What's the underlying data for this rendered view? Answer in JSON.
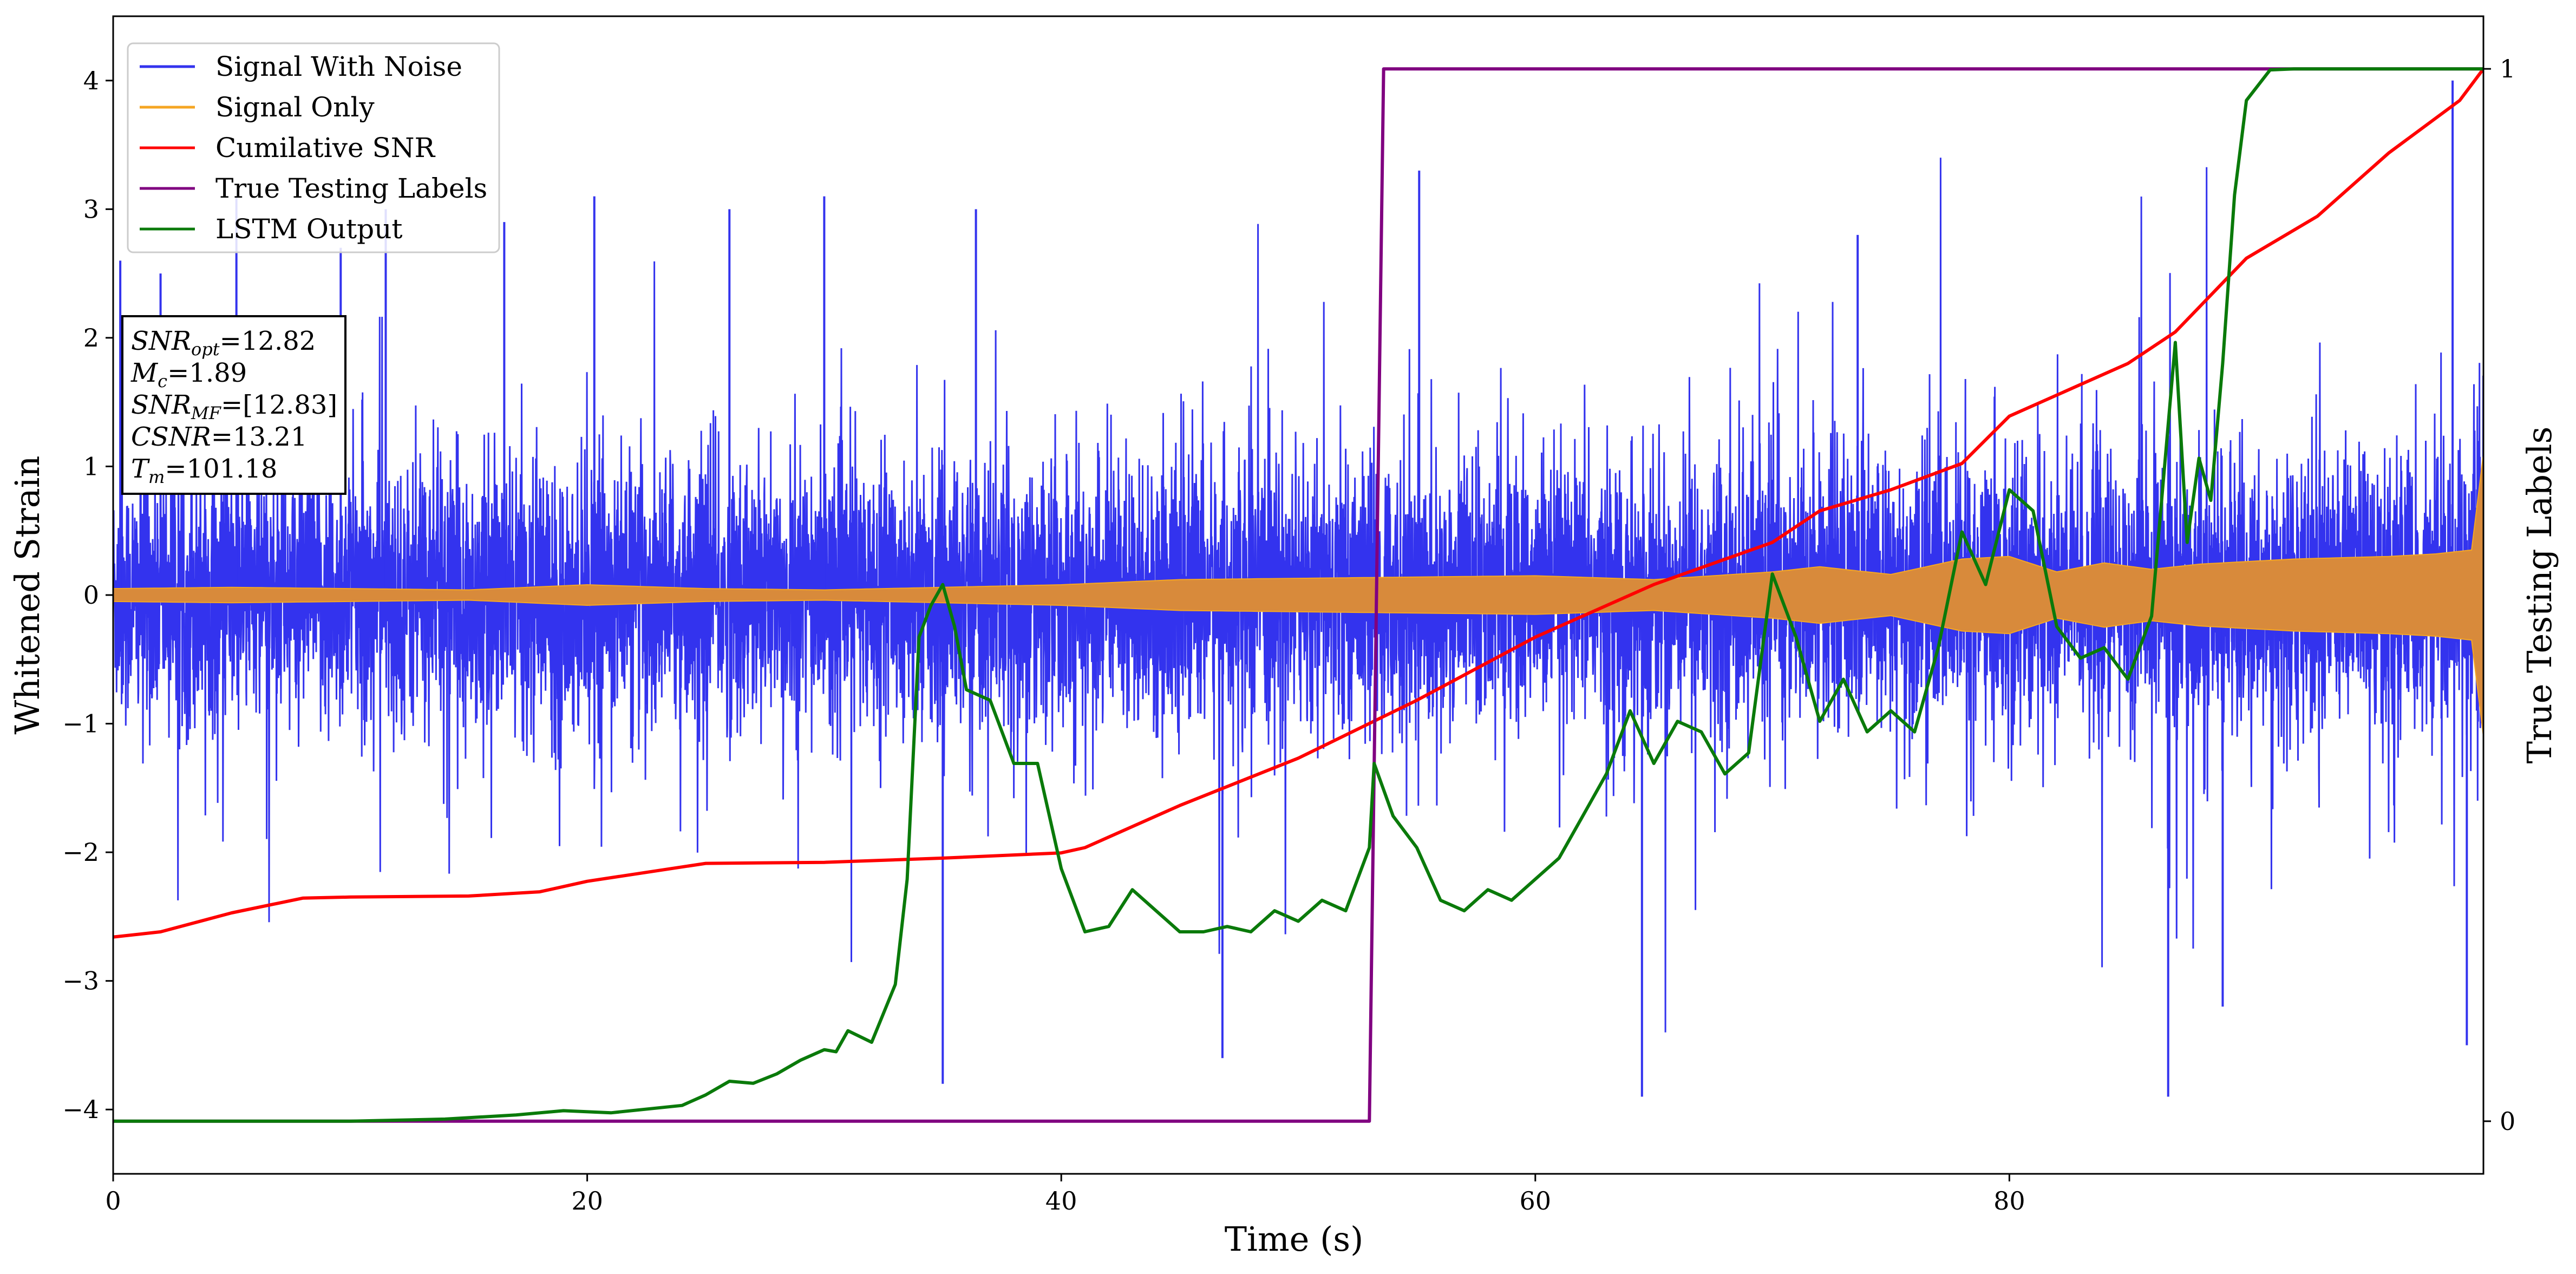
{
  "chart_data": {
    "type": "line",
    "xlabel": "Time (s)",
    "ylabel": "Whitened Strain",
    "y2label": "True Testing Labels",
    "xlim": [
      0,
      100
    ],
    "ylim": [
      -4.5,
      4.5
    ],
    "y2lim": [
      -0.05,
      1.05
    ],
    "xticks": [
      "0",
      "20",
      "40",
      "60",
      "80"
    ],
    "yticks": [
      "−4",
      "−3",
      "−2",
      "−1",
      "0",
      "1",
      "2",
      "3",
      "4"
    ],
    "y2ticks": [
      "0",
      "1"
    ],
    "legend_position": "top-left",
    "colors": {
      "signal_with_noise": "#3333ee",
      "signal_only": "#f5a623",
      "signal_only_fill": "#d88a3b",
      "cumulative_snr": "#ff0000",
      "true_labels": "#800080",
      "lstm_output": "#0a7a0a"
    },
    "series": [
      {
        "name": "Signal With Noise",
        "axis": "left",
        "style": "noise",
        "baseline_std": 0.9,
        "note_values": "dense random noise around the signal; peak values",
        "peaks": [
          [
            0.3,
            2.6
          ],
          [
            2.0,
            2.5
          ],
          [
            5.2,
            3.1
          ],
          [
            9.6,
            2.7
          ],
          [
            11.5,
            3.0
          ],
          [
            16.5,
            2.9
          ],
          [
            20.3,
            3.1
          ],
          [
            26.0,
            3.0
          ],
          [
            30.0,
            3.1
          ],
          [
            35.0,
            -3.8
          ],
          [
            36.4,
            3.0
          ],
          [
            46.8,
            -3.6
          ],
          [
            55.1,
            3.3
          ],
          [
            64.5,
            -3.9
          ],
          [
            73.6,
            2.8
          ],
          [
            86.7,
            -3.9
          ],
          [
            89.0,
            -3.2
          ],
          [
            98.7,
            4.0
          ],
          [
            99.3,
            -3.5
          ]
        ]
      },
      {
        "name": "Signal Only",
        "axis": "left",
        "style": "chirp-envelope",
        "x": [
          0,
          5,
          10,
          15,
          20,
          25,
          30,
          35,
          40,
          45,
          50,
          55,
          60,
          65,
          70,
          72,
          75,
          78,
          80,
          82,
          84,
          86,
          88,
          90,
          92,
          94,
          96,
          98,
          99.5,
          100
        ],
        "envelope": [
          0.05,
          0.06,
          0.05,
          0.04,
          0.08,
          0.05,
          0.04,
          0.06,
          0.08,
          0.12,
          0.13,
          0.14,
          0.15,
          0.12,
          0.18,
          0.22,
          0.16,
          0.28,
          0.3,
          0.18,
          0.25,
          0.2,
          0.24,
          0.26,
          0.28,
          0.29,
          0.3,
          0.32,
          0.35,
          1.1
        ]
      },
      {
        "name": "Cumilative SNR",
        "axis": "right",
        "x": [
          0,
          2,
          5,
          8,
          10,
          15,
          18,
          20,
          25,
          30,
          35,
          40,
          41,
          45,
          50,
          55,
          60,
          65,
          70,
          72,
          75,
          78,
          80,
          83,
          85,
          87,
          90,
          93,
          96,
          99,
          100
        ],
        "y": [
          0.175,
          0.18,
          0.198,
          0.212,
          0.213,
          0.214,
          0.218,
          0.228,
          0.245,
          0.246,
          0.25,
          0.255,
          0.26,
          0.3,
          0.345,
          0.4,
          0.46,
          0.51,
          0.55,
          0.58,
          0.6,
          0.625,
          0.67,
          0.7,
          0.72,
          0.75,
          0.82,
          0.86,
          0.92,
          0.97,
          1.0
        ]
      },
      {
        "name": "True Testing Labels",
        "axis": "right",
        "x": [
          0,
          53.0,
          53.6,
          100
        ],
        "y": [
          0,
          0,
          1,
          1
        ]
      },
      {
        "name": "LSTM Output",
        "axis": "right",
        "x": [
          0,
          10,
          14,
          17,
          19,
          21,
          24,
          25,
          26,
          27,
          28,
          29,
          30,
          30.5,
          31,
          32,
          33,
          33.5,
          34,
          34.5,
          35,
          35.5,
          36,
          37,
          38,
          39,
          40,
          41,
          42,
          43,
          44,
          45,
          46,
          47,
          48,
          49,
          50,
          51,
          52,
          53,
          53.2,
          54,
          55,
          56,
          57,
          58,
          59,
          60,
          61,
          62,
          63,
          64,
          65,
          66,
          67,
          68,
          69,
          70,
          71,
          72,
          73,
          74,
          75,
          76,
          77,
          78,
          79,
          80,
          81,
          82,
          83,
          84,
          85,
          86,
          87,
          87.5,
          88,
          88.5,
          89,
          89.5,
          90,
          91,
          92,
          95,
          100
        ],
        "y": [
          0,
          0,
          0.002,
          0.006,
          0.01,
          0.008,
          0.015,
          0.025,
          0.038,
          0.036,
          0.045,
          0.058,
          0.068,
          0.066,
          0.086,
          0.075,
          0.13,
          0.23,
          0.46,
          0.49,
          0.51,
          0.47,
          0.41,
          0.4,
          0.34,
          0.34,
          0.24,
          0.18,
          0.185,
          0.22,
          0.2,
          0.18,
          0.18,
          0.185,
          0.18,
          0.2,
          0.19,
          0.21,
          0.2,
          0.26,
          0.34,
          0.29,
          0.26,
          0.21,
          0.2,
          0.22,
          0.21,
          0.23,
          0.25,
          0.29,
          0.33,
          0.39,
          0.34,
          0.38,
          0.37,
          0.33,
          0.35,
          0.52,
          0.46,
          0.38,
          0.42,
          0.37,
          0.39,
          0.37,
          0.45,
          0.56,
          0.51,
          0.6,
          0.58,
          0.47,
          0.44,
          0.45,
          0.42,
          0.48,
          0.74,
          0.55,
          0.63,
          0.59,
          0.72,
          0.88,
          0.97,
          0.999,
          1.0,
          1.0,
          1.0
        ]
      }
    ],
    "info_box": {
      "lines": [
        {
          "main": "SNR",
          "sub": "opt",
          "rest": "=12.82"
        },
        {
          "main": "M",
          "sub": "c",
          "rest": "=1.89"
        },
        {
          "main": "SNR",
          "sub": "MF",
          "rest": "=[12.83]"
        },
        {
          "main": "CSNR",
          "sub": "",
          "rest": "=13.21"
        },
        {
          "main": "T",
          "sub": "m",
          "rest": "=101.18"
        }
      ]
    }
  }
}
